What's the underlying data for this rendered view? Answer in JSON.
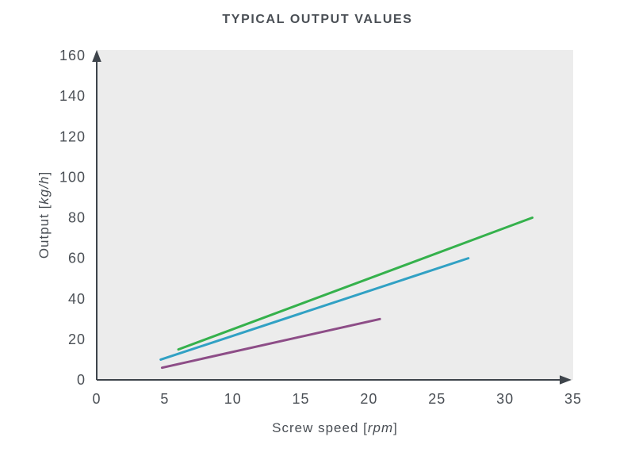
{
  "title": "TYPICAL OUTPUT VALUES",
  "labels": {
    "y_axis": {
      "prefix": "Output [",
      "unit": "kg/h",
      "suffix": "]"
    },
    "x_axis": {
      "prefix": "Screw speed [",
      "unit": "rpm",
      "suffix": "]"
    }
  },
  "colors": {
    "plot_background": "#ececec",
    "axis": "#3e444b",
    "text": "#4a4f55",
    "series_green": "#35b14c",
    "series_teal": "#31a1c4",
    "series_purple": "#8d4d87"
  },
  "chart_data": {
    "type": "line",
    "title": "TYPICAL OUTPUT VALUES",
    "xlabel": "Screw speed [rpm]",
    "ylabel": "Output [kg/h]",
    "xlim": [
      0,
      35
    ],
    "ylim": [
      0,
      160
    ],
    "x_ticks": [
      0,
      5,
      10,
      15,
      20,
      25,
      30,
      35
    ],
    "y_ticks": [
      0,
      20,
      40,
      60,
      80,
      100,
      120,
      140,
      160
    ],
    "grid": false,
    "legend": "none",
    "series": [
      {
        "name": "green line",
        "color": "#35b14c",
        "points": [
          [
            6,
            15
          ],
          [
            32,
            80
          ]
        ]
      },
      {
        "name": "teal line",
        "color": "#31a1c4",
        "points": [
          [
            4.7,
            10
          ],
          [
            27.3,
            60
          ]
        ]
      },
      {
        "name": "purple line",
        "color": "#8d4d87",
        "points": [
          [
            4.8,
            6
          ],
          [
            20.8,
            30
          ]
        ]
      }
    ]
  }
}
